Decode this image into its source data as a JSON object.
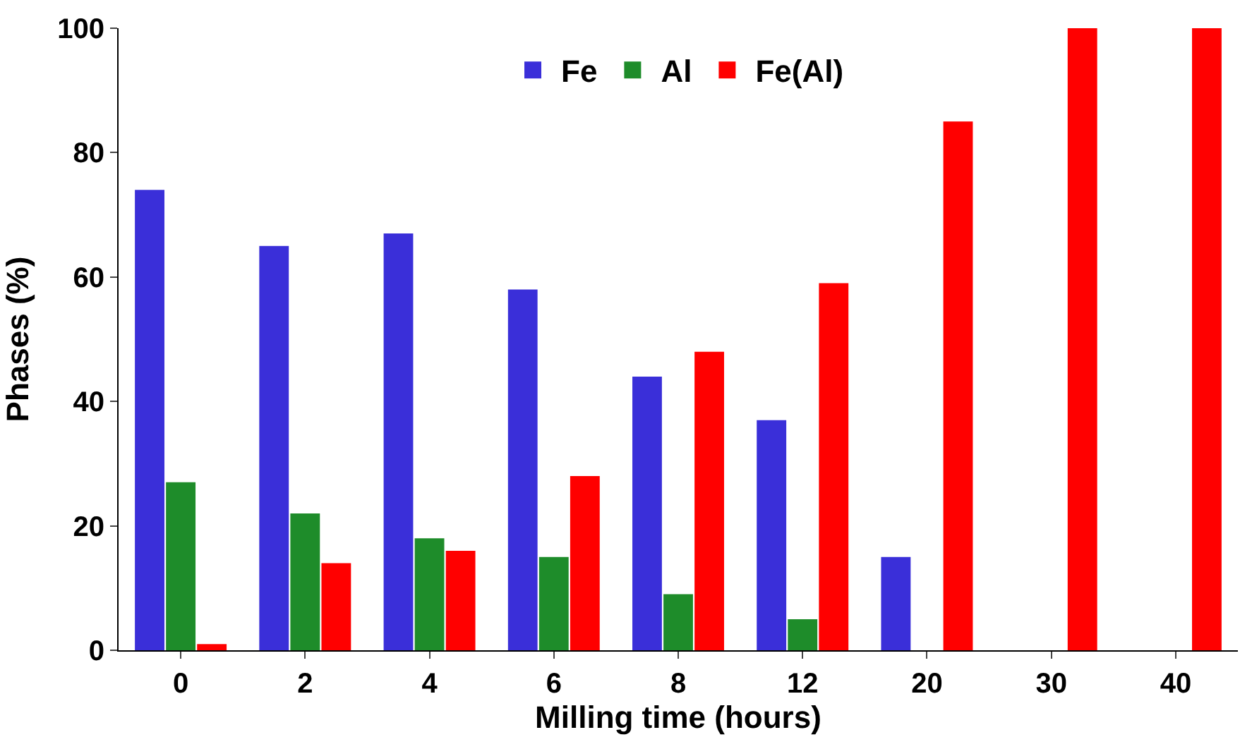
{
  "chart_data": {
    "type": "bar",
    "xlabel": "Milling time (hours)",
    "ylabel": "Phases (%)",
    "categories": [
      "0",
      "2",
      "4",
      "6",
      "8",
      "12",
      "20",
      "30",
      "40"
    ],
    "series": [
      {
        "name": "Fe",
        "color": "#3a2fd9",
        "values": [
          74,
          65,
          67,
          58,
          44,
          37,
          15,
          null,
          null
        ]
      },
      {
        "name": "Al",
        "color": "#1e8c2a",
        "values": [
          27,
          22,
          18,
          15,
          9,
          5,
          null,
          null,
          null
        ]
      },
      {
        "name": "Fe(Al)",
        "color": "#ff0000",
        "values": [
          1,
          14,
          16,
          28,
          48,
          59,
          85,
          100,
          100
        ]
      }
    ],
    "ylim": [
      0,
      100
    ],
    "yticks": [
      0,
      20,
      40,
      60,
      80,
      100
    ],
    "legend": "top"
  }
}
